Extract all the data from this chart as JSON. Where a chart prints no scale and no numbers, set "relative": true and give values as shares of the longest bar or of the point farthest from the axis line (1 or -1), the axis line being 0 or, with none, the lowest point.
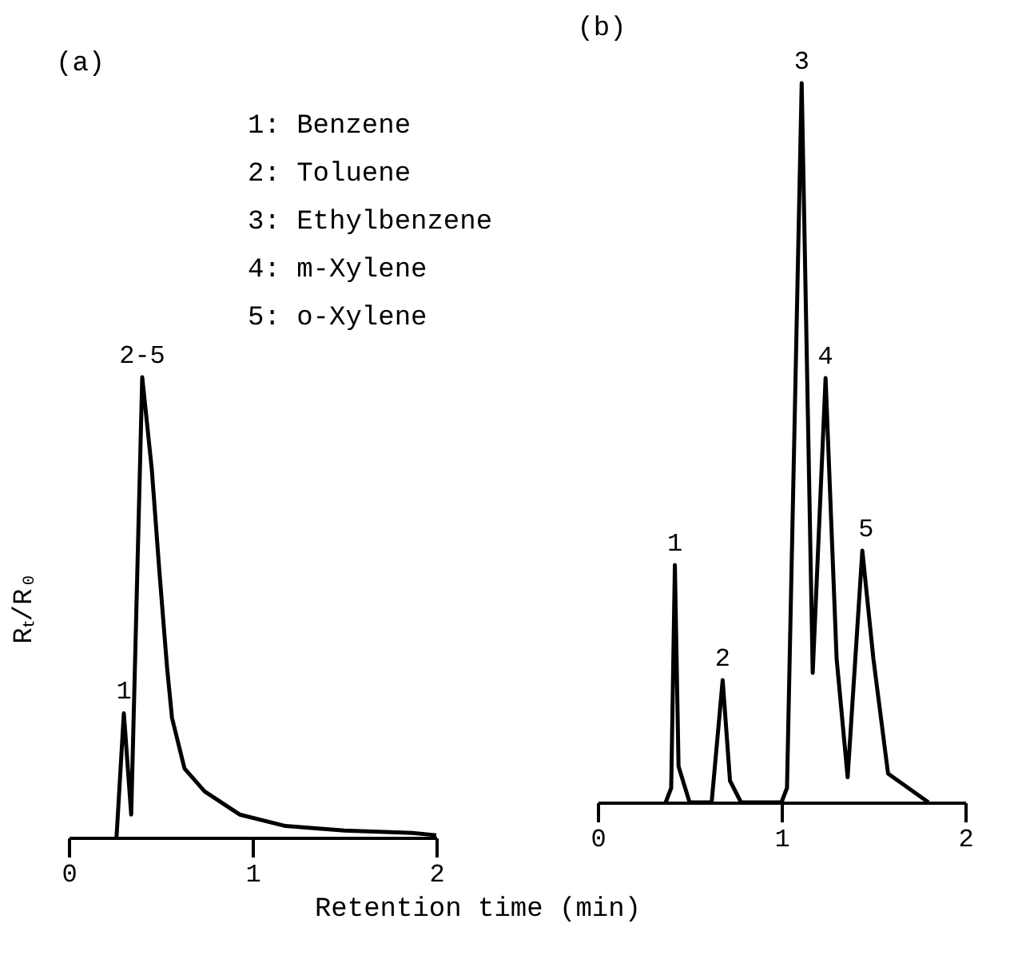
{
  "chart_data": [
    {
      "type": "line",
      "title": "(a)",
      "ylabel": "Rₜ/R₀",
      "xlabel": "Retention time (min)",
      "relative": true,
      "color": "#000000",
      "xlim": [
        0,
        2
      ],
      "xticks": [
        0,
        1,
        2
      ],
      "x": [
        0.26,
        0.3,
        0.34,
        0.4,
        0.452,
        0.493,
        0.535,
        0.562,
        0.63,
        0.74,
        0.93,
        1.18,
        1.5,
        1.87,
        2
      ],
      "values": [
        0,
        0.27,
        0.05,
        1,
        0.8,
        0.58,
        0.37,
        0.26,
        0.15,
        0.1,
        0.05,
        0.025,
        0.015,
        0.01,
        0.005
      ],
      "annotations": [
        {
          "text": "1",
          "x": 0.3,
          "y": 0.27
        },
        {
          "text": "2-5",
          "x": 0.4,
          "y": 1
        },
        "1: Benzene",
        "2: Toluene",
        "3: Ethylbenzene",
        "4: m-Xylene",
        "5: o-Xylene"
      ]
    },
    {
      "type": "line",
      "title": "(b)",
      "relative": true,
      "color": "#000000",
      "xlim": [
        0,
        2
      ],
      "xticks": [
        0,
        1,
        2
      ],
      "x": [
        0.37,
        0.4,
        0.42,
        0.44,
        0.5,
        0.62,
        0.68,
        0.72,
        0.78,
        1.0,
        1.03,
        1.11,
        1.17,
        1.24,
        1.3,
        1.36,
        1.44,
        1.5,
        1.58,
        1.8
      ],
      "values": [
        0,
        0.02,
        0.33,
        0.05,
        0,
        0,
        0.17,
        0.03,
        0,
        0,
        0.02,
        1,
        0.18,
        0.59,
        0.2,
        0.035,
        0.35,
        0.2,
        0.04,
        0
      ],
      "annotations": [
        {
          "text": "1",
          "x": 0.42,
          "y": 0.33
        },
        {
          "text": "2",
          "x": 0.68,
          "y": 0.17
        },
        {
          "text": "3",
          "x": 1.11,
          "y": 1
        },
        {
          "text": "4",
          "x": 1.24,
          "y": 0.59
        },
        {
          "text": "5",
          "x": 1.46,
          "y": 0.35
        }
      ]
    }
  ]
}
